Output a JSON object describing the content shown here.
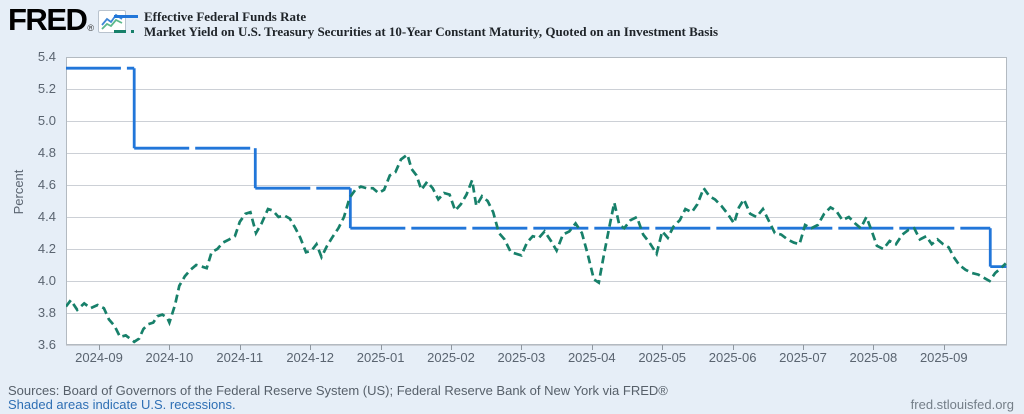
{
  "brand": {
    "logo_text": "FRED",
    "registered_mark": "®",
    "icon_line_colors": [
      "#3f87d6",
      "#5cb98c"
    ]
  },
  "legend": [
    {
      "label": "Effective Federal Funds Rate",
      "color": "#2176d9",
      "style": "solid"
    },
    {
      "label": "Market Yield on U.S. Treasury Securities at 10-Year Constant Maturity, Quoted on an Investment Basis",
      "color": "#17806a",
      "style": "dash-dot"
    }
  ],
  "style": {
    "page_background": "#e6eef7",
    "plot_background": "#ffffff",
    "grid_color": "#ccd0d6",
    "border_color": "#b3bac1",
    "tick_color": "#8f979f",
    "axis_text_color": "#5a6470"
  },
  "chart_data": {
    "type": "line",
    "ylabel": "Percent",
    "ylim": [
      3.6,
      5.4
    ],
    "xlim": [
      -0.47,
      12.9
    ],
    "grid": "horizontal only",
    "legend_position": "top-left header",
    "x_unit": "months; integer n = tick n (0 = 2024-09, 12 = 2025-09)",
    "y_ticks": [
      5.4,
      5.2,
      5.0,
      4.8,
      4.6,
      4.4,
      4.2,
      4.0,
      3.8,
      3.6
    ],
    "x_ticks": [
      "2024-09",
      "2024-10",
      "2024-11",
      "2024-12",
      "2025-01",
      "2025-02",
      "2025-03",
      "2025-04",
      "2025-05",
      "2025-06",
      "2025-07",
      "2025-08",
      "2025-09"
    ],
    "series": [
      {
        "name": "Effective Federal Funds Rate",
        "color": "#2176d9",
        "line_style": "solid with small data gaps",
        "draw": "step",
        "points": [
          [
            -0.47,
            5.33
          ],
          [
            0.5,
            5.33
          ],
          [
            0.5,
            4.83
          ],
          [
            2.22,
            4.83
          ],
          [
            2.22,
            4.58
          ],
          [
            3.57,
            4.58
          ],
          [
            3.57,
            4.33
          ],
          [
            12.66,
            4.33
          ],
          [
            12.66,
            4.09
          ],
          [
            12.89,
            4.09
          ]
        ]
      },
      {
        "name": "Market Yield on U.S. Treasury Securities at 10-Year Constant Maturity, Quoted on an Investment Basis",
        "color": "#17806a",
        "line_style": "dash-dot",
        "draw": "line",
        "points": [
          [
            -0.47,
            3.84
          ],
          [
            -0.4,
            3.88
          ],
          [
            -0.31,
            3.82
          ],
          [
            -0.21,
            3.86
          ],
          [
            -0.12,
            3.83
          ],
          [
            -0.02,
            3.85
          ],
          [
            0.07,
            3.83
          ],
          [
            0.14,
            3.76
          ],
          [
            0.22,
            3.72
          ],
          [
            0.3,
            3.65
          ],
          [
            0.38,
            3.66
          ],
          [
            0.44,
            3.64
          ],
          [
            0.5,
            3.62
          ],
          [
            0.57,
            3.64
          ],
          [
            0.63,
            3.7
          ],
          [
            0.7,
            3.73
          ],
          [
            0.77,
            3.74
          ],
          [
            0.83,
            3.78
          ],
          [
            0.9,
            3.79
          ],
          [
            0.97,
            3.77
          ],
          [
            1.0,
            3.74
          ],
          [
            1.08,
            3.85
          ],
          [
            1.14,
            3.97
          ],
          [
            1.22,
            4.03
          ],
          [
            1.3,
            4.07
          ],
          [
            1.38,
            4.1
          ],
          [
            1.46,
            4.09
          ],
          [
            1.53,
            4.08
          ],
          [
            1.6,
            4.18
          ],
          [
            1.68,
            4.2
          ],
          [
            1.76,
            4.24
          ],
          [
            1.85,
            4.26
          ],
          [
            1.93,
            4.28
          ],
          [
            2.0,
            4.37
          ],
          [
            2.08,
            4.42
          ],
          [
            2.15,
            4.43
          ],
          [
            2.23,
            4.3
          ],
          [
            2.31,
            4.36
          ],
          [
            2.4,
            4.45
          ],
          [
            2.47,
            4.44
          ],
          [
            2.55,
            4.4
          ],
          [
            2.63,
            4.41
          ],
          [
            2.71,
            4.39
          ],
          [
            2.79,
            4.33
          ],
          [
            2.86,
            4.27
          ],
          [
            2.94,
            4.18
          ],
          [
            3.02,
            4.19
          ],
          [
            3.09,
            4.23
          ],
          [
            3.16,
            4.15
          ],
          [
            3.24,
            4.22
          ],
          [
            3.31,
            4.27
          ],
          [
            3.4,
            4.33
          ],
          [
            3.48,
            4.4
          ],
          [
            3.56,
            4.52
          ],
          [
            3.64,
            4.57
          ],
          [
            3.72,
            4.59
          ],
          [
            3.8,
            4.58
          ],
          [
            3.89,
            4.58
          ],
          [
            3.97,
            4.55
          ],
          [
            4.05,
            4.57
          ],
          [
            4.13,
            4.66
          ],
          [
            4.21,
            4.68
          ],
          [
            4.29,
            4.76
          ],
          [
            4.38,
            4.79
          ],
          [
            4.44,
            4.7
          ],
          [
            4.51,
            4.66
          ],
          [
            4.58,
            4.57
          ],
          [
            4.66,
            4.62
          ],
          [
            4.74,
            4.58
          ],
          [
            4.82,
            4.51
          ],
          [
            4.9,
            4.55
          ],
          [
            4.98,
            4.54
          ],
          [
            5.06,
            4.44
          ],
          [
            5.14,
            4.48
          ],
          [
            5.22,
            4.54
          ],
          [
            5.3,
            4.63
          ],
          [
            5.36,
            4.47
          ],
          [
            5.44,
            4.53
          ],
          [
            5.52,
            4.5
          ],
          [
            5.6,
            4.43
          ],
          [
            5.68,
            4.3
          ],
          [
            5.76,
            4.26
          ],
          [
            5.85,
            4.18
          ],
          [
            6.0,
            4.16
          ],
          [
            6.08,
            4.24
          ],
          [
            6.16,
            4.28
          ],
          [
            6.25,
            4.27
          ],
          [
            6.33,
            4.31
          ],
          [
            6.42,
            4.25
          ],
          [
            6.5,
            4.19
          ],
          [
            6.59,
            4.29
          ],
          [
            6.68,
            4.31
          ],
          [
            6.77,
            4.36
          ],
          [
            6.86,
            4.3
          ],
          [
            6.94,
            4.17
          ],
          [
            7.03,
            4.01
          ],
          [
            7.1,
            3.99
          ],
          [
            7.17,
            4.16
          ],
          [
            7.25,
            4.34
          ],
          [
            7.32,
            4.49
          ],
          [
            7.39,
            4.35
          ],
          [
            7.46,
            4.33
          ],
          [
            7.55,
            4.38
          ],
          [
            7.64,
            4.4
          ],
          [
            7.73,
            4.29
          ],
          [
            7.82,
            4.24
          ],
          [
            7.92,
            4.17
          ],
          [
            8.0,
            4.31
          ],
          [
            8.08,
            4.27
          ],
          [
            8.16,
            4.34
          ],
          [
            8.25,
            4.38
          ],
          [
            8.33,
            4.45
          ],
          [
            8.42,
            4.43
          ],
          [
            8.5,
            4.48
          ],
          [
            8.59,
            4.58
          ],
          [
            8.67,
            4.53
          ],
          [
            8.75,
            4.51
          ],
          [
            8.84,
            4.47
          ],
          [
            8.93,
            4.42
          ],
          [
            9.02,
            4.36
          ],
          [
            9.09,
            4.46
          ],
          [
            9.16,
            4.51
          ],
          [
            9.25,
            4.42
          ],
          [
            9.34,
            4.4
          ],
          [
            9.43,
            4.45
          ],
          [
            9.51,
            4.38
          ],
          [
            9.6,
            4.3
          ],
          [
            9.69,
            4.29
          ],
          [
            9.78,
            4.26
          ],
          [
            9.87,
            4.24
          ],
          [
            9.95,
            4.23
          ],
          [
            10.03,
            4.35
          ],
          [
            10.12,
            4.33
          ],
          [
            10.21,
            4.35
          ],
          [
            10.3,
            4.42
          ],
          [
            10.39,
            4.46
          ],
          [
            10.47,
            4.44
          ],
          [
            10.56,
            4.38
          ],
          [
            10.65,
            4.4
          ],
          [
            10.74,
            4.36
          ],
          [
            10.82,
            4.33
          ],
          [
            10.9,
            4.4
          ],
          [
            10.97,
            4.32
          ],
          [
            11.05,
            4.22
          ],
          [
            11.14,
            4.2
          ],
          [
            11.23,
            4.25
          ],
          [
            11.32,
            4.23
          ],
          [
            11.41,
            4.29
          ],
          [
            11.5,
            4.32
          ],
          [
            11.58,
            4.33
          ],
          [
            11.66,
            4.26
          ],
          [
            11.75,
            4.28
          ],
          [
            11.83,
            4.23
          ],
          [
            11.91,
            4.26
          ],
          [
            11.99,
            4.23
          ],
          [
            12.07,
            4.21
          ],
          [
            12.14,
            4.15
          ],
          [
            12.22,
            4.1
          ],
          [
            12.31,
            4.07
          ],
          [
            12.4,
            4.05
          ],
          [
            12.49,
            4.04
          ],
          [
            12.57,
            4.02
          ],
          [
            12.65,
            4.0
          ],
          [
            12.73,
            4.05
          ],
          [
            12.81,
            4.08
          ],
          [
            12.88,
            4.11
          ]
        ]
      }
    ]
  },
  "footer": {
    "sources": "Sources: Board of Governors of the Federal Reserve System (US); Federal Reserve Bank of New York via FRED®",
    "recession_note": "Shaded areas indicate U.S. recessions.",
    "site": "fred.stlouisfed.org"
  }
}
